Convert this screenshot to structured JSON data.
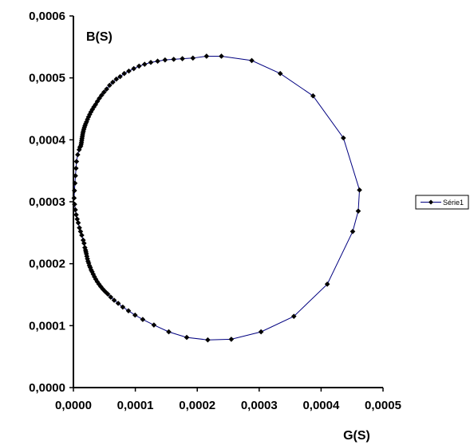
{
  "chart_data": {
    "type": "scatter",
    "title": "",
    "xlabel": "G(S)",
    "ylabel": "B(S)",
    "xlim": [
      0,
      0.0005
    ],
    "ylim": [
      0,
      0.0006
    ],
    "x_ticks": [
      "0,0000",
      "0,0001",
      "0,0002",
      "0,0003",
      "0,0004",
      "0,0005"
    ],
    "y_ticks": [
      "0,0000",
      "0,0001",
      "0,0002",
      "0,0003",
      "0,0004",
      "0,0005",
      "0,0006"
    ],
    "grid": false,
    "legend_position": "right",
    "series": [
      {
        "name": "Série1",
        "color": "#000080",
        "marker": "diamond",
        "x": [
          1.1e-06,
          1.7e-06,
          2.5e-06,
          3.3e-06,
          4.2e-06,
          5e-06,
          6.9e-06,
          9.3e-06,
          1.05e-05,
          1.18e-05,
          1.25e-05,
          1.3e-05,
          1.34e-05,
          1.38e-05,
          1.43e-05,
          1.48e-05,
          1.53e-05,
          1.6e-05,
          1.68e-05,
          1.77e-05,
          1.87e-05,
          1.98e-05,
          2.12e-05,
          2.27e-05,
          2.44e-05,
          2.63e-05,
          2.83e-05,
          3.06e-05,
          3.3e-05,
          3.57e-05,
          3.87e-05,
          4.19e-05,
          4.55e-05,
          4.94e-05,
          5.37e-05,
          5.84e-05,
          6.36e-05,
          6.93e-05,
          7.54e-05,
          8.21e-05,
          8.95e-05,
          9.75e-05,
          0.000106,
          0.000115,
          0.000125,
          0.000136,
          0.000148,
          0.000162,
          0.000176,
          0.000193,
          0.000215,
          0.000239,
          0.000288,
          0.000334,
          0.000387,
          0.000436,
          0.000462,
          0.00046,
          0.000451,
          0.00041,
          0.000356,
          0.000303,
          0.000255,
          0.000217,
          0.000183,
          0.000154,
          0.00013,
          0.000112,
          9.96e-05,
          8.89e-05,
          7.97e-05,
          7.23e-05,
          6.58e-05,
          6.03e-05,
          5.55e-05,
          5.13e-05,
          4.75e-05,
          4.42e-05,
          4.12e-05,
          3.85e-05,
          3.61e-05,
          3.39e-05,
          3.2e-05,
          3.02e-05,
          2.86e-05,
          2.72e-05,
          2.58e-05,
          2.47e-05,
          2.36e-05,
          2.26e-05,
          2.17e-05,
          2.09e-05,
          2.02e-05,
          1.96e-05,
          1.85e-05,
          1.72e-05,
          1.58e-05,
          1.35e-05,
          1.15e-05,
          9.7e-06,
          7.8e-06,
          6.1e-06,
          4.5e-06,
          3.1e-06,
          1.9e-06
        ],
        "y": [
          0.000306,
          0.000318,
          0.00033,
          0.000342,
          0.000354,
          0.000365,
          0.000376,
          0.000384,
          0.000388,
          0.00039,
          0.000393,
          0.000396,
          0.000399,
          0.000402,
          0.000405,
          0.000408,
          0.000411,
          0.000414,
          0.000417,
          0.00042,
          0.000423,
          0.000426,
          0.000429,
          0.000433,
          0.000437,
          0.000441,
          0.000445,
          0.000449,
          0.000453,
          0.000457,
          0.000462,
          0.000467,
          0.000472,
          0.000477,
          0.000482,
          0.000488,
          0.000493,
          0.000498,
          0.000502,
          0.000507,
          0.000511,
          0.000515,
          0.000519,
          0.000522,
          0.000525,
          0.000527,
          0.000529,
          0.00053,
          0.000531,
          0.000532,
          0.000535,
          0.000535,
          0.000528,
          0.000507,
          0.000471,
          0.000403,
          0.000319,
          0.000285,
          0.000252,
          0.000167,
          0.000115,
          9e-05,
          7.8e-05,
          7.7e-05,
          8.1e-05,
          9e-05,
          0.000101,
          0.00011,
          0.000117,
          0.000124,
          0.00013,
          0.000136,
          0.000141,
          0.000146,
          0.000151,
          0.000155,
          0.000159,
          0.000163,
          0.000167,
          0.000171,
          0.000175,
          0.000179,
          0.000183,
          0.000187,
          0.00019,
          0.000194,
          0.000197,
          0.000201,
          0.000204,
          0.000208,
          0.000212,
          0.000216,
          0.000219,
          0.000222,
          0.000226,
          0.000233,
          0.000238,
          0.000246,
          0.000252,
          0.000258,
          0.000266,
          0.000272,
          0.000279,
          0.000287,
          0.000296
        ]
      }
    ]
  }
}
